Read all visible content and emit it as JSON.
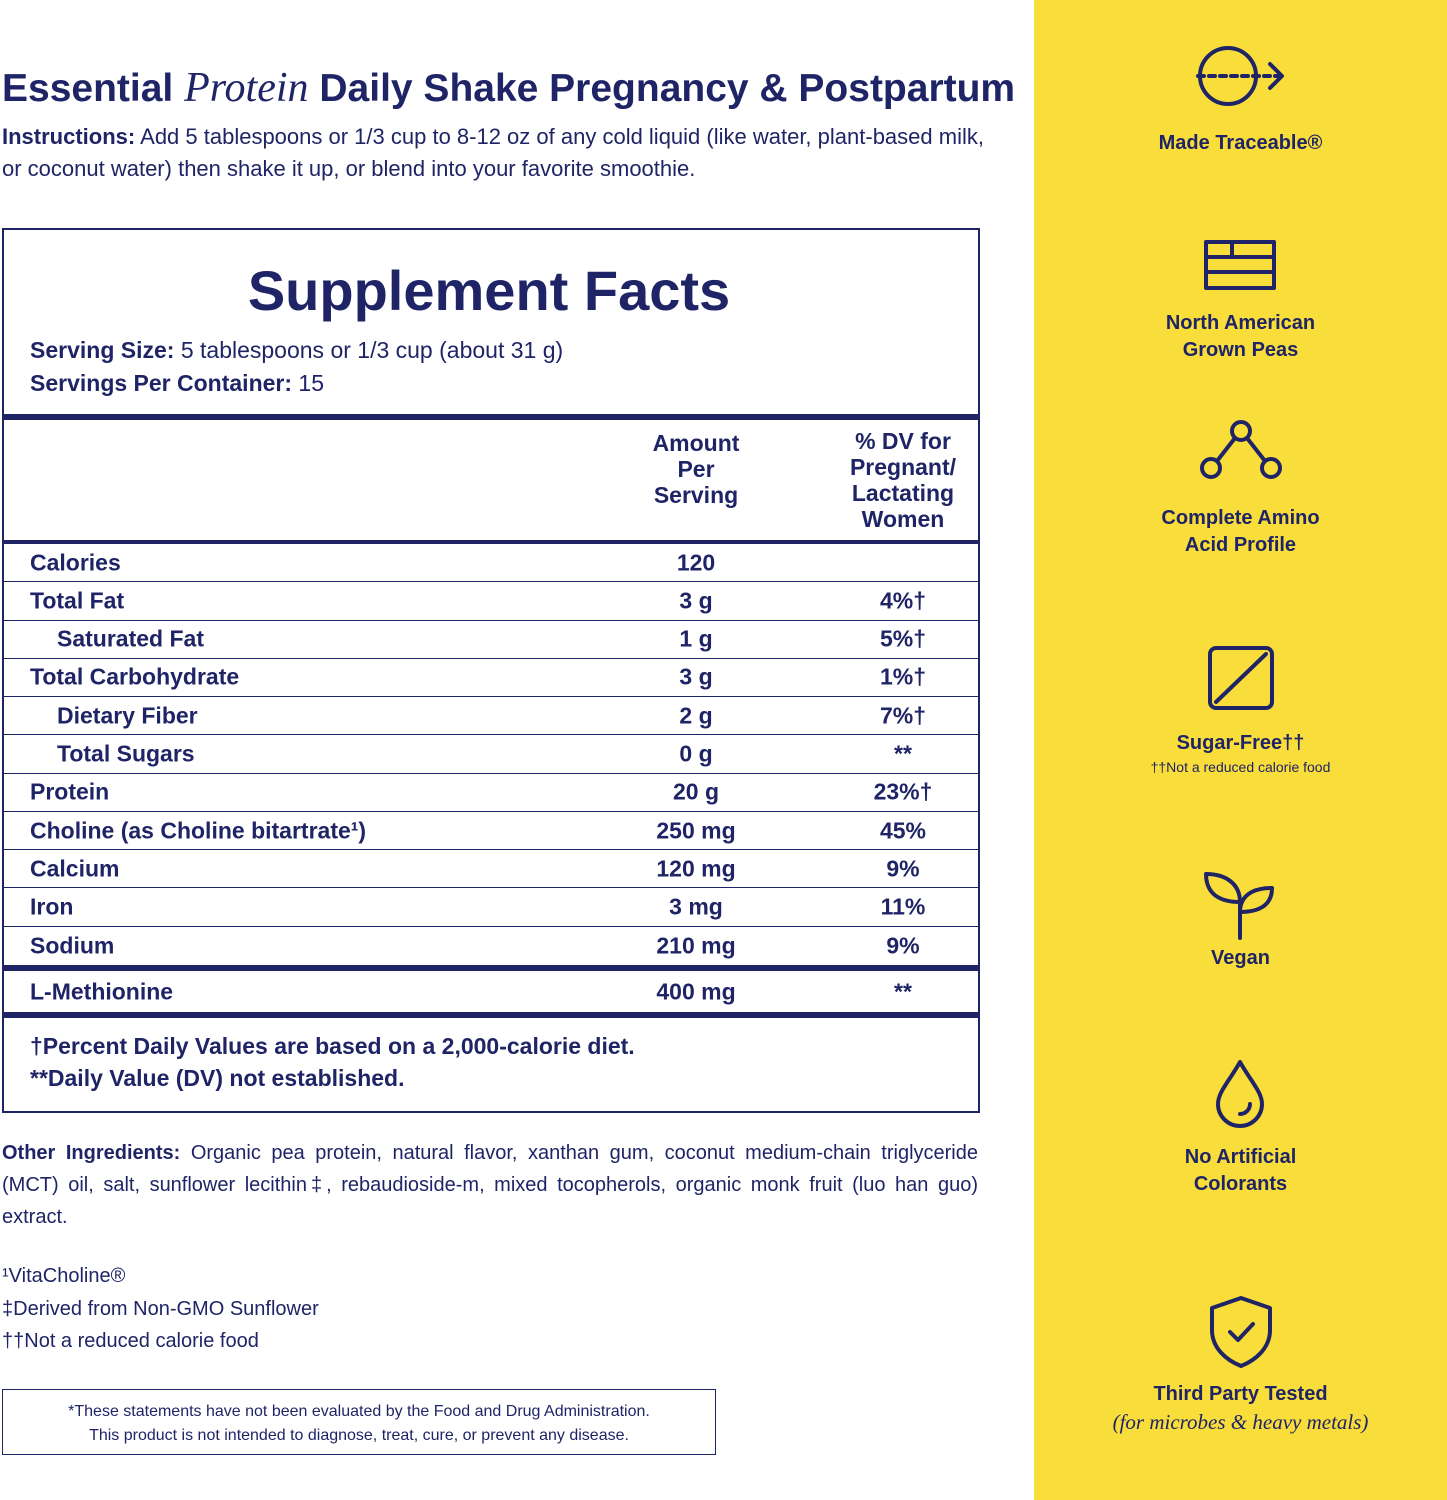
{
  "title": {
    "pre": "Essential",
    "italic": "Protein",
    "post": "Daily Shake Pregnancy & Postpartum"
  },
  "instructions": {
    "label": "Instructions:",
    "text": "Add 5 tablespoons or 1/3 cup to 8-12 oz of any cold liquid (like water, plant-based milk, or coconut water) then shake it up, or blend into your favorite smoothie."
  },
  "facts": {
    "heading": "Supplement Facts",
    "serving_size": {
      "label": "Serving Size:",
      "value": "5 tablespoons or 1/3 cup (about 31 g)"
    },
    "servings": {
      "label": "Servings Per Container:",
      "value": "15"
    },
    "columns": [
      [
        "Amount",
        "Per",
        "Serving"
      ],
      [
        "% DV for",
        "Pregnant/",
        "Lactating",
        "Women"
      ]
    ],
    "rows": [
      {
        "name": "Calories",
        "amount": "120",
        "dv": ""
      },
      {
        "name": "Total Fat",
        "amount": "3 g",
        "dv": "4%†",
        "sub": [
          {
            "name": "Saturated Fat",
            "amount": "1 g",
            "dv": "5%†"
          }
        ]
      },
      {
        "name": "Total Carbohydrate",
        "amount": "3 g",
        "dv": "1%†",
        "sub": [
          {
            "name": "Dietary Fiber",
            "amount": "2 g",
            "dv": "7%†"
          },
          {
            "name": "Total Sugars",
            "amount": "0 g",
            "dv": "**"
          }
        ]
      },
      {
        "name": "Protein",
        "amount": "20 g",
        "dv": "23%†"
      },
      {
        "name": "Choline (as Choline bitartrate¹)",
        "amount": "250 mg",
        "dv": "45%"
      },
      {
        "name": "Calcium",
        "amount": "120 mg",
        "dv": "9%"
      },
      {
        "name": "Iron",
        "amount": "3 mg",
        "dv": "11%"
      },
      {
        "name": "Sodium",
        "amount": "210 mg",
        "dv": "9%"
      }
    ],
    "other_rows": [
      {
        "name": "L-Methionine",
        "amount": "400 mg",
        "dv": "**"
      }
    ],
    "footnotes": [
      "†Percent Daily Values are based on a 2,000-calorie diet.",
      "**Daily Value (DV) not established."
    ]
  },
  "other_ingredients": {
    "label": "Other Ingredients:",
    "text": "Organic pea protein, natural flavor, xanthan gum, coconut medium-chain triglyceride (MCT) oil, salt, sunflower lecithin‡, rebaudioside-m, mixed tocopherols, organic monk fruit (luo han guo) extract."
  },
  "notes": [
    "¹VitaCholine®",
    "‡Derived from Non-GMO Sunflower",
    "††Not a reduced calorie food"
  ],
  "disclaimer": [
    "*These statements have not been evaluated by the Food and Drug Administration.",
    "This product is not intended to diagnose, treat, cure, or prevent any disease."
  ],
  "features": [
    {
      "label": [
        "Made Traceable®"
      ]
    },
    {
      "label": [
        "North American",
        "Grown Peas"
      ]
    },
    {
      "label": [
        "Complete Amino",
        "Acid Profile"
      ]
    },
    {
      "label": [
        "Sugar-Free††"
      ],
      "note": "††Not a reduced calorie food"
    },
    {
      "label": [
        "Vegan"
      ]
    },
    {
      "label": [
        "No Artificial",
        "Colorants"
      ]
    },
    {
      "label": [
        "Third Party Tested"
      ],
      "note": "(for microbes & heavy metals)"
    }
  ]
}
